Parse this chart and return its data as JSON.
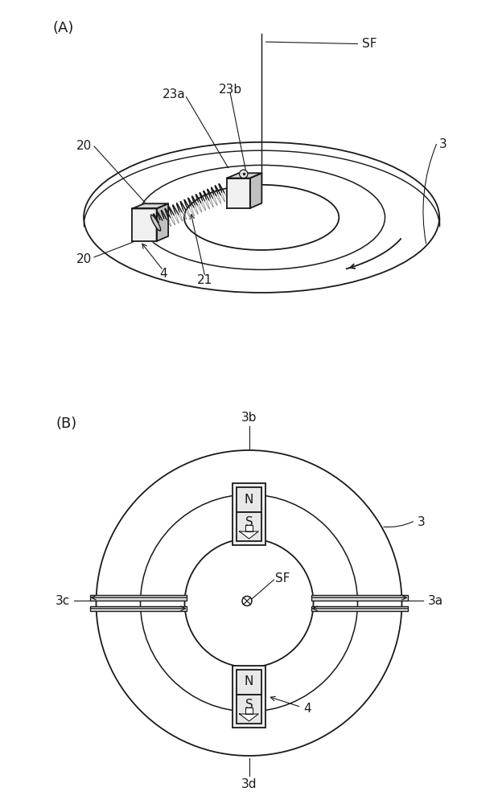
{
  "bg_color": "#ffffff",
  "line_color": "#1a1a1a",
  "fig_label_A": "(A)",
  "fig_label_B": "(B)",
  "label_3_A": "3",
  "label_SF_A": "SF",
  "label_20_top": "20",
  "label_20_bot": "20",
  "label_4_A": "4",
  "label_21": "21",
  "label_23a": "23a",
  "label_23b": "23b",
  "label_3b": "3b",
  "label_3a": "3a",
  "label_3c": "3c",
  "label_3d": "3d",
  "label_3_B": "3",
  "label_SF_B": "SF",
  "label_4_B": "4"
}
